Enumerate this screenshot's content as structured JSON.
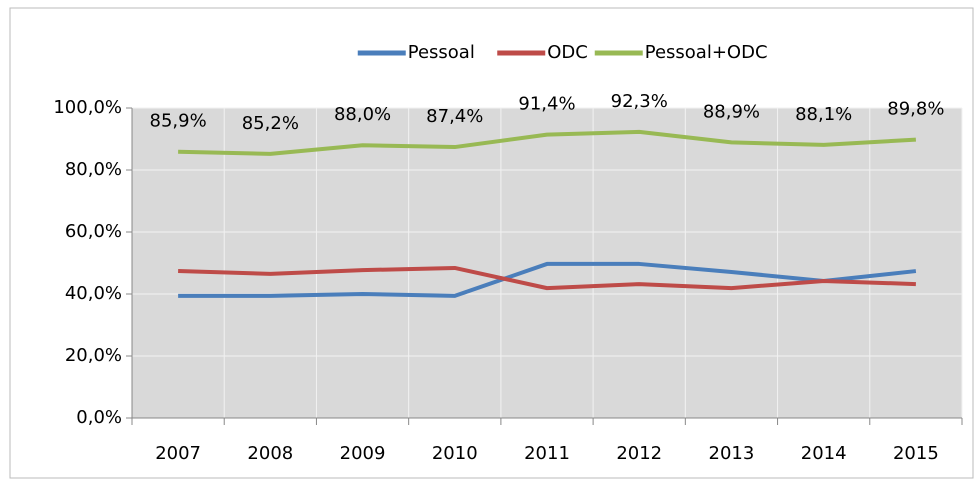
{
  "chart_data": {
    "type": "line",
    "categories": [
      "2007",
      "2008",
      "2009",
      "2010",
      "2011",
      "2012",
      "2013",
      "2014",
      "2015"
    ],
    "series": [
      {
        "name": "Pessoal",
        "color": "#4a7ebb",
        "values": [
          39.4,
          39.4,
          40.0,
          39.4,
          49.7,
          49.7,
          47.1,
          44.2,
          47.4
        ]
      },
      {
        "name": "ODC",
        "color": "#be4b48",
        "values": [
          47.4,
          46.5,
          47.7,
          48.4,
          41.9,
          43.2,
          41.9,
          44.2,
          43.2
        ]
      },
      {
        "name": "Pessoal+ODC",
        "color": "#98b954",
        "values": [
          85.9,
          85.2,
          88.0,
          87.4,
          91.4,
          92.3,
          88.9,
          88.1,
          89.8
        ],
        "value_labels": [
          "85,9%",
          "85,2%",
          "88,0%",
          "87,4%",
          "91,4%",
          "92,3%",
          "88,9%",
          "88,1%",
          "89,8%"
        ]
      }
    ],
    "ylim": [
      0,
      100
    ],
    "yticks": [
      {
        "value": 0,
        "label": "0,0%"
      },
      {
        "value": 20,
        "label": "20,0%"
      },
      {
        "value": 40,
        "label": "40,0%"
      },
      {
        "value": 60,
        "label": "60,0%"
      },
      {
        "value": 80,
        "label": "80,0%"
      },
      {
        "value": 100,
        "label": "100,0%"
      }
    ],
    "grid": true,
    "legend": "top"
  }
}
